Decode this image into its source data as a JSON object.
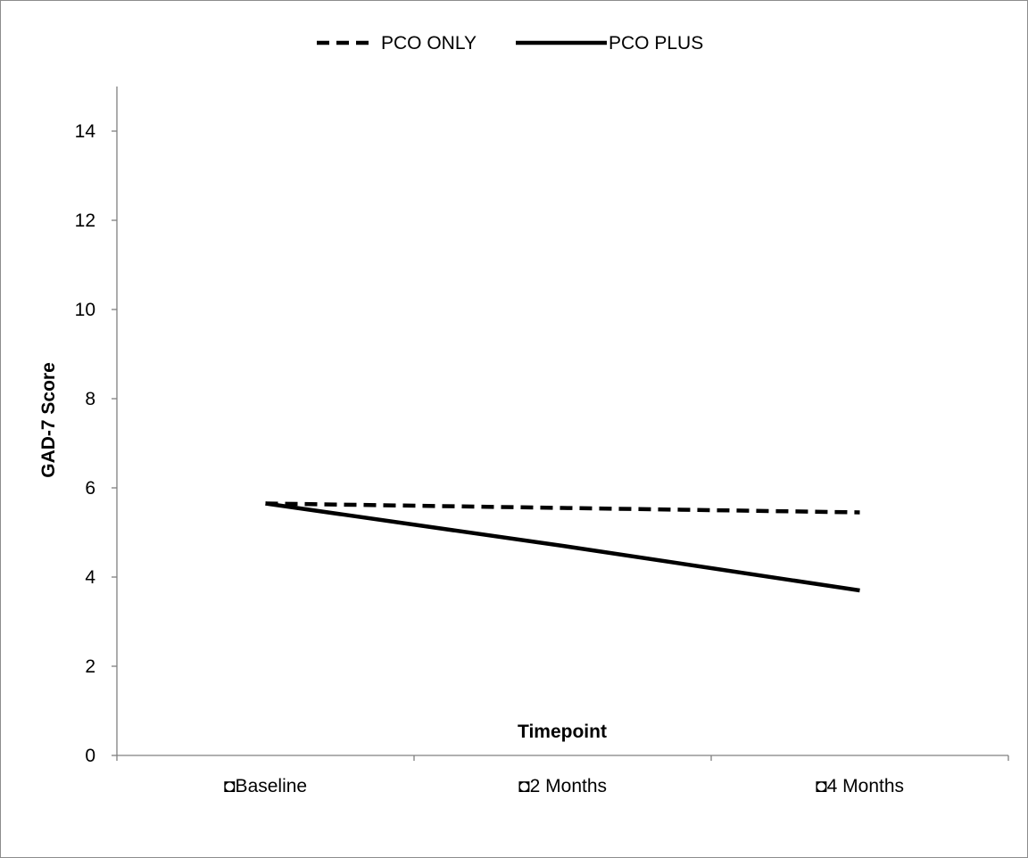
{
  "chart_data": {
    "type": "line",
    "categories": [
      "◘Baseline",
      "◘2 Months",
      "◘4 Months"
    ],
    "series": [
      {
        "name": "PCO ONLY",
        "values": [
          5.65,
          5.55,
          5.45
        ],
        "line_style": "dashed",
        "color": "#000000"
      },
      {
        "name": "PCO PLUS",
        "values": [
          5.65,
          4.7,
          3.7
        ],
        "line_style": "solid",
        "color": "#000000"
      }
    ],
    "xlabel": "Timepoint",
    "ylabel": "GAD-7 Score",
    "ylim": [
      0,
      15
    ],
    "yticks": [
      "0",
      "2",
      "4",
      "6",
      "8",
      "10",
      "12",
      "14"
    ],
    "ytick_values": [
      0,
      2,
      4,
      6,
      8,
      10,
      12,
      14
    ],
    "grid": false,
    "legend_position": "top-center"
  }
}
